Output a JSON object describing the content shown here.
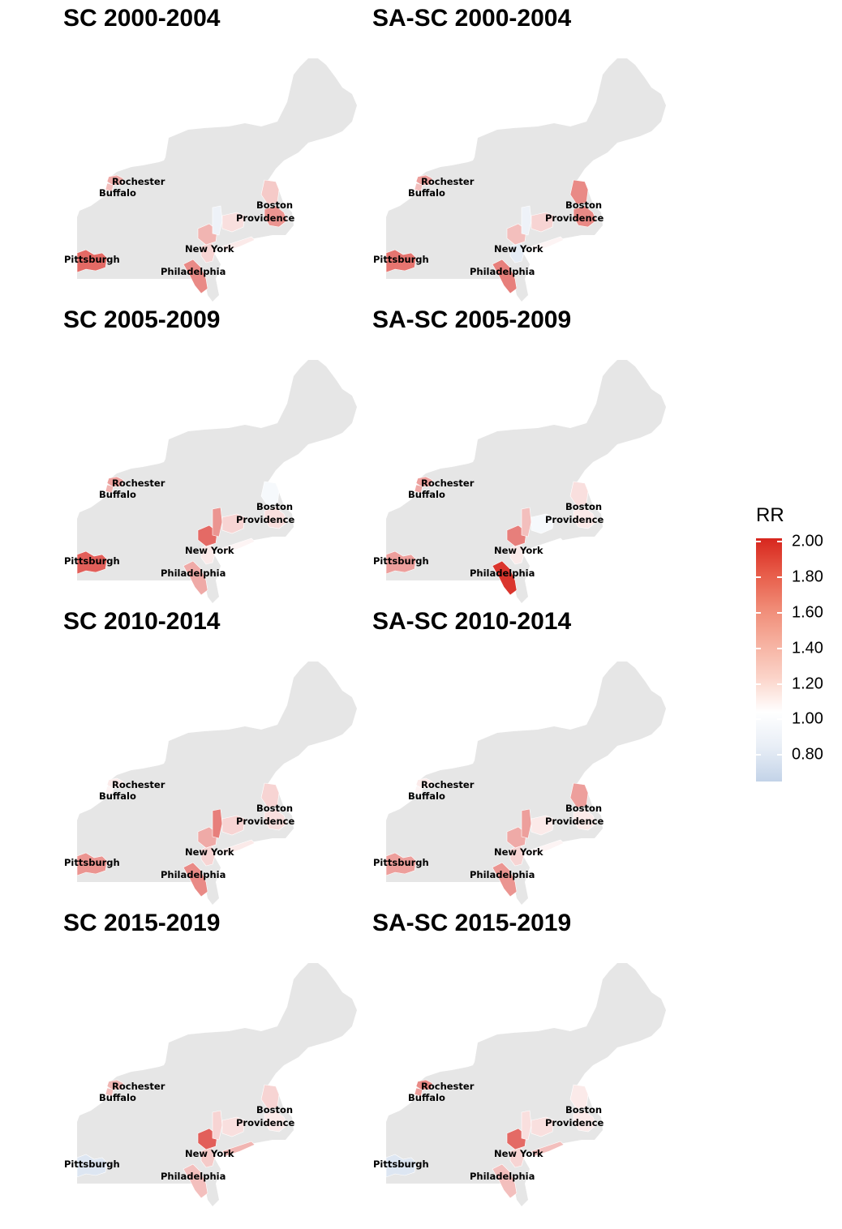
{
  "cities": [
    "Rochester",
    "Buffalo",
    "Boston",
    "Providence",
    "New York",
    "Pittsburgh",
    "Philadelphia"
  ],
  "colors": {
    "land": "#e6e6e6",
    "high": "#d7261e",
    "neutral": "#ffffff",
    "low": "#c3d3e8"
  },
  "legend": {
    "title": "RR",
    "min": 0.65,
    "max": 2.02,
    "ticks": [
      "2.00",
      "1.80",
      "1.60",
      "1.40",
      "1.20",
      "1.00",
      "0.80"
    ],
    "tick_values": [
      2.0,
      1.8,
      1.6,
      1.4,
      1.2,
      1.0,
      0.8
    ]
  },
  "panels": [
    {
      "title": "SC 2000-2004",
      "rr": {
        "rochester": 1.4,
        "buffalo": 1.3,
        "pittsburgh": 1.7,
        "philadelphia": 1.55,
        "newyork": 1.35,
        "nj": 1.2,
        "upstate_hudson": 0.9,
        "ct": 1.15,
        "providence": 1.5,
        "boston": 1.25,
        "longisland": 1.1
      }
    },
    {
      "title": "SA-SC 2000-2004",
      "rr": {
        "rochester": 1.45,
        "buffalo": 1.3,
        "pittsburgh": 1.65,
        "philadelphia": 1.6,
        "newyork": 1.3,
        "nj": 0.85,
        "upstate_hudson": 0.9,
        "ct": 1.2,
        "providence": 1.55,
        "boston": 1.55,
        "longisland": 1.05
      }
    },
    {
      "title": "SC 2005-2009",
      "rr": {
        "rochester": 1.45,
        "buffalo": 1.35,
        "pittsburgh": 1.75,
        "philadelphia": 1.4,
        "newyork": 1.7,
        "nj": 1.1,
        "upstate_hudson": 1.5,
        "ct": 1.2,
        "providence": 1.15,
        "boston": 0.95,
        "longisland": 1.05
      }
    },
    {
      "title": "SA-SC 2005-2009",
      "rr": {
        "rochester": 1.45,
        "buffalo": 1.4,
        "pittsburgh": 1.45,
        "philadelphia": 1.95,
        "newyork": 1.6,
        "nj": 1.1,
        "upstate_hudson": 1.3,
        "ct": 0.95,
        "providence": 1.1,
        "boston": 1.15,
        "longisland": 1.0
      }
    },
    {
      "title": "SC 2010-2014",
      "rr": {
        "rochester": 1.1,
        "buffalo": 1.05,
        "pittsburgh": 1.5,
        "philadelphia": 1.55,
        "newyork": 1.4,
        "nj": 1.2,
        "upstate_hudson": 1.6,
        "ct": 1.2,
        "providence": 1.15,
        "boston": 1.2,
        "longisland": 1.1
      }
    },
    {
      "title": "SA-SC 2010-2014",
      "rr": {
        "rochester": 1.1,
        "buffalo": 1.05,
        "pittsburgh": 1.45,
        "philadelphia": 1.5,
        "newyork": 1.4,
        "nj": 1.2,
        "upstate_hudson": 1.45,
        "ct": 1.1,
        "providence": 1.1,
        "boston": 1.45,
        "longisland": 1.05
      }
    },
    {
      "title": "SC 2015-2019",
      "rr": {
        "rochester": 1.35,
        "buffalo": 1.3,
        "pittsburgh": 0.8,
        "philadelphia": 1.3,
        "newyork": 1.75,
        "nj": 1.25,
        "upstate_hudson": 1.2,
        "ct": 1.15,
        "providence": 1.1,
        "boston": 1.2,
        "longisland": 1.35
      }
    },
    {
      "title": "SA-SC 2015-2019",
      "rr": {
        "rochester": 1.55,
        "buffalo": 1.45,
        "pittsburgh": 0.8,
        "philadelphia": 1.3,
        "newyork": 1.7,
        "nj": 1.2,
        "upstate_hudson": 1.15,
        "ct": 1.15,
        "providence": 1.1,
        "boston": 1.1,
        "longisland": 1.3
      }
    }
  ]
}
